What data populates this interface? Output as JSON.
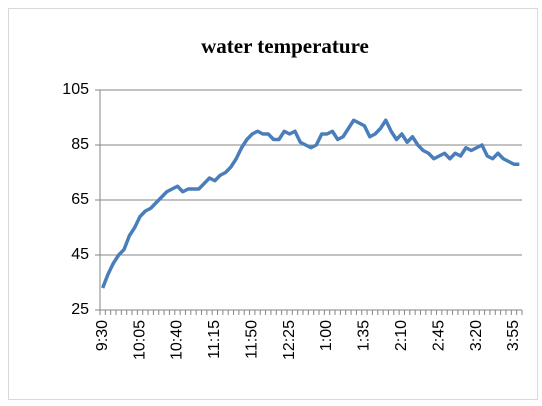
{
  "chart_data": {
    "type": "line",
    "title": "water temperature",
    "categories": [
      "9:30",
      null,
      null,
      null,
      null,
      null,
      null,
      "10:05",
      null,
      null,
      null,
      null,
      null,
      null,
      "10:40",
      null,
      null,
      null,
      null,
      null,
      null,
      "11:15",
      null,
      null,
      null,
      null,
      null,
      null,
      "11:50",
      null,
      null,
      null,
      null,
      null,
      null,
      "12:25",
      null,
      null,
      null,
      null,
      null,
      null,
      "1:00",
      null,
      null,
      null,
      null,
      null,
      null,
      "1:35",
      null,
      null,
      null,
      null,
      null,
      null,
      "2:10",
      null,
      null,
      null,
      null,
      null,
      null,
      "2:45",
      null,
      null,
      null,
      null,
      null,
      null,
      "3:20",
      null,
      null,
      null,
      null,
      null,
      null,
      "3:55",
      null
    ],
    "series": [
      {
        "name": "water temperature",
        "color": "#4a7ebb",
        "values": [
          33,
          38,
          42,
          45,
          47,
          52,
          55,
          59,
          61,
          62,
          64,
          66,
          68,
          69,
          70,
          68,
          69,
          69,
          69,
          71,
          73,
          72,
          74,
          75,
          77,
          80,
          84,
          87,
          89,
          90,
          89,
          89,
          87,
          87,
          90,
          89,
          90,
          86,
          85,
          84,
          85,
          89,
          89,
          90,
          87,
          88,
          91,
          94,
          93,
          92,
          88,
          89,
          91,
          94,
          90,
          87,
          89,
          86,
          88,
          85,
          83,
          82,
          80,
          81,
          82,
          80,
          82,
          81,
          84,
          83,
          84,
          85,
          81,
          80,
          82,
          80,
          79,
          78,
          78
        ]
      }
    ],
    "ylim": [
      25,
      105
    ],
    "yticks": [
      25,
      45,
      65,
      85,
      105
    ],
    "grid": true
  }
}
